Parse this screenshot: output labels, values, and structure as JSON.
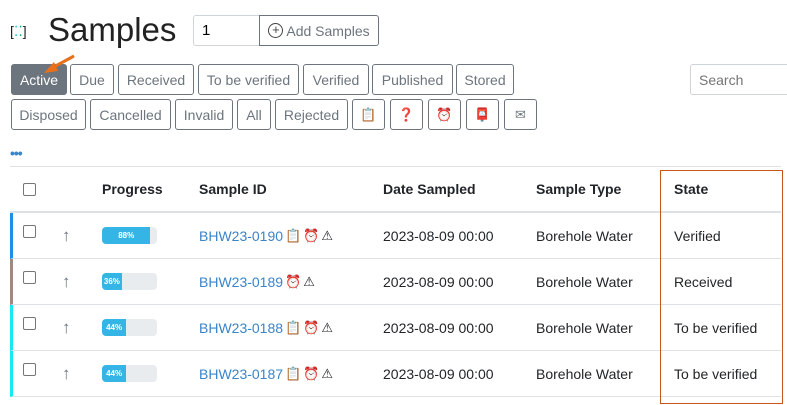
{
  "header": {
    "title": "Samples",
    "quantity_value": "1",
    "add_label": "Add Samples"
  },
  "filters": {
    "row1": [
      "Active",
      "Due",
      "Received",
      "To be verified",
      "Verified",
      "Published",
      "Stored"
    ],
    "row2": [
      "Disposed",
      "Cancelled",
      "Invalid",
      "All",
      "Rejected"
    ],
    "icon_buttons": [
      "clipboard-icon",
      "clipboard-question-icon",
      "alarm-clock-icon",
      "mail-rejected-icon",
      "mail-open-icon"
    ],
    "active": "Active"
  },
  "search": {
    "placeholder": "Search"
  },
  "more": "•••",
  "table": {
    "columns": [
      "Progress",
      "Sample ID",
      "Date Sampled",
      "Sample Type",
      "State"
    ],
    "rows": [
      {
        "progress": 88,
        "progress_label": "88%",
        "id": "BHW23-0190",
        "icons": [
          "clipboard",
          "alarm",
          "warning"
        ],
        "date": "2023-08-09 00:00",
        "type": "Borehole Water",
        "state": "Verified",
        "color": "#1e8fe8"
      },
      {
        "progress": 36,
        "progress_label": "36%",
        "id": "BHW23-0189",
        "icons": [
          "alarm",
          "warning"
        ],
        "date": "2023-08-09 00:00",
        "type": "Borehole Water",
        "state": "Received",
        "color": "#a08a7e"
      },
      {
        "progress": 44,
        "progress_label": "44%",
        "id": "BHW23-0188",
        "icons": [
          "clipboard",
          "alarm",
          "warning"
        ],
        "date": "2023-08-09 00:00",
        "type": "Borehole Water",
        "state": "To be verified",
        "color": "#1ae8f0"
      },
      {
        "progress": 44,
        "progress_label": "44%",
        "id": "BHW23-0187",
        "icons": [
          "clipboard",
          "alarm",
          "warning"
        ],
        "date": "2023-08-09 00:00",
        "type": "Borehole Water",
        "state": "To be verified",
        "color": "#1ae8f0"
      }
    ]
  },
  "colors": {
    "accent": "#3a84c9",
    "progress": "#35b5e5",
    "highlight": "#c9541c",
    "active_button": "#6c757d"
  }
}
